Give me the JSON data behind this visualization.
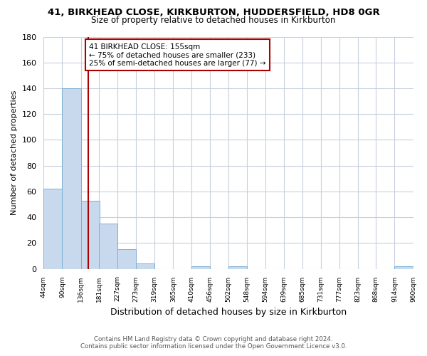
{
  "title1": "41, BIRKHEAD CLOSE, KIRKBURTON, HUDDERSFIELD, HD8 0GR",
  "title2": "Size of property relative to detached houses in Kirkburton",
  "xlabel": "Distribution of detached houses by size in Kirkburton",
  "ylabel": "Number of detached properties",
  "footer1": "Contains HM Land Registry data © Crown copyright and database right 2024.",
  "footer2": "Contains public sector information licensed under the Open Government Licence v3.0.",
  "annotation_line1": "41 BIRKHEAD CLOSE: 155sqm",
  "annotation_line2": "← 75% of detached houses are smaller (233)",
  "annotation_line3": "25% of semi-detached houses are larger (77) →",
  "bin_edges": [
    44,
    90,
    136,
    181,
    227,
    273,
    319,
    365,
    410,
    456,
    502,
    548,
    594,
    639,
    685,
    731,
    777,
    823,
    868,
    914,
    960
  ],
  "bin_counts": [
    62,
    140,
    53,
    35,
    15,
    4,
    0,
    0,
    2,
    0,
    2,
    0,
    0,
    0,
    0,
    0,
    0,
    0,
    0,
    2
  ],
  "bar_color": "#c9d9ed",
  "bar_edge_color": "#7bafd4",
  "grid_color": "#c8d0dc",
  "vline_x": 155,
  "vline_color": "#aa0000",
  "ylim": [
    0,
    180
  ],
  "yticks": [
    0,
    20,
    40,
    60,
    80,
    100,
    120,
    140,
    160,
    180
  ],
  "annotation_box_color": "#ffffff",
  "annotation_box_edge": "#aa0000",
  "bg_color": "#ffffff"
}
